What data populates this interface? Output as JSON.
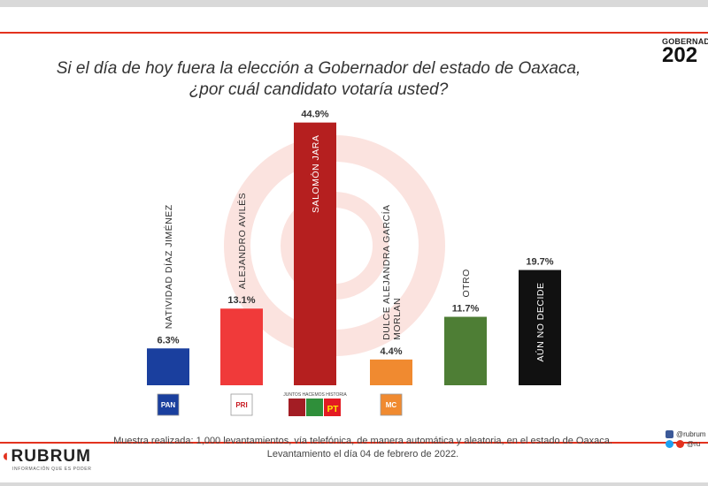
{
  "header": {
    "brand_label": "GOBERNADOR",
    "year_text": "202"
  },
  "title_line1": "Si el día de hoy fuera la elección a Gobernador del estado de Oaxaca,",
  "title_line2": "¿por cuál candidato votaría usted?",
  "chart_data": {
    "type": "bar",
    "ylim": [
      0,
      45
    ],
    "categories": [
      "NATIVIDAD DÍAZ JIMÉNEZ",
      "ALEJANDRO AVILÉS",
      "SALOMÓN JARA",
      "DULCE ALEJANDRA GARCÍA MORLAN",
      "OTRO",
      "AÚN NO DECIDE"
    ],
    "category_lines": [
      [
        "NATIVIDAD DÍAZ JIMÉNEZ"
      ],
      [
        "ALEJANDRO AVILÉS"
      ],
      [
        "SALOMÓN JARA"
      ],
      [
        "DULCE ALEJANDRA GARCÍA",
        "MORLAN"
      ],
      [
        "OTRO"
      ],
      [
        "AÚN NO DECIDE"
      ]
    ],
    "values": [
      6.3,
      13.1,
      44.9,
      4.4,
      11.7,
      19.7
    ],
    "value_labels": [
      "6.3%",
      "13.1%",
      "44.9%",
      "4.4%",
      "11.7%",
      "19.7%"
    ],
    "colors": [
      "#1a3f9e",
      "#f03a3a",
      "#b51f1f",
      "#f08a30",
      "#4e7e35",
      "#111111"
    ],
    "party_labels": [
      "PAN",
      "PRI",
      "JUNTOS HACEMOS HISTORIA",
      "MC",
      "",
      ""
    ]
  },
  "footnote": {
    "line1": "Muestra realizada: 1,000 levantamientos, vía telefónica, de manera automática y aleatoria, en el estado de Oaxaca.",
    "line2": "Levantamiento el día 04 de febrero de 2022."
  },
  "logo": {
    "name": "RUBRUM",
    "tagline": "INFORMACIÓN QUE ES PODER"
  },
  "social": {
    "facebook": "@rubrum",
    "twitter": "@ru"
  }
}
